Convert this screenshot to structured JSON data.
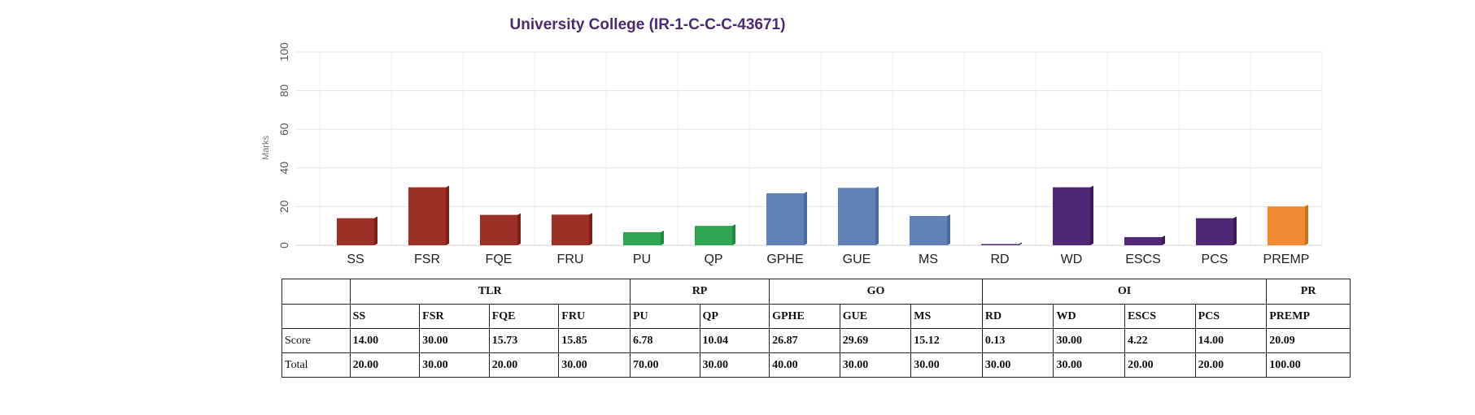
{
  "chart_data": {
    "type": "bar",
    "title": "University College (IR-1-C-C-C-43671)",
    "ylabel": "Marks",
    "xlabel": "",
    "ylim": [
      0,
      100
    ],
    "yticks": [
      0,
      20,
      40,
      60,
      80,
      100
    ],
    "grid": true,
    "categories": [
      "SS",
      "FSR",
      "FQE",
      "FRU",
      "PU",
      "QP",
      "GPHE",
      "GUE",
      "MS",
      "RD",
      "WD",
      "ESCS",
      "PCS",
      "PREMP"
    ],
    "values": [
      14.0,
      30.0,
      15.73,
      15.85,
      6.78,
      10.04,
      26.87,
      29.69,
      15.12,
      0.13,
      30.0,
      4.22,
      14.0,
      20.09
    ],
    "bar_colors": [
      "#9b3126",
      "#9b3126",
      "#9b3126",
      "#9b3126",
      "#2fa552",
      "#2fa552",
      "#6181b7",
      "#6181b7",
      "#6181b7",
      "#4f2774",
      "#4f2774",
      "#4f2774",
      "#4f2774",
      "#f08a32"
    ],
    "bar_side_colors": [
      "#7a2018",
      "#7a2018",
      "#7a2018",
      "#7a2018",
      "#1f8a3f",
      "#1f8a3f",
      "#4d6a9c",
      "#4d6a9c",
      "#4d6a9c",
      "#3b1a5c",
      "#3b1a5c",
      "#3b1a5c",
      "#3b1a5c",
      "#d06d1c"
    ]
  },
  "table": {
    "groups": [
      {
        "name": "TLR",
        "span": 4
      },
      {
        "name": "RP",
        "span": 2
      },
      {
        "name": "GO",
        "span": 3
      },
      {
        "name": "OI",
        "span": 4
      },
      {
        "name": "PR",
        "span": 1
      }
    ],
    "codes": [
      "SS",
      "FSR",
      "FQE",
      "FRU",
      "PU",
      "QP",
      "GPHE",
      "GUE",
      "MS",
      "RD",
      "WD",
      "ESCS",
      "PCS",
      "PREMP"
    ],
    "score_label": "Score",
    "scores": [
      "14.00",
      "30.00",
      "15.73",
      "15.85",
      "6.78",
      "10.04",
      "26.87",
      "29.69",
      "15.12",
      "0.13",
      "30.00",
      "4.22",
      "14.00",
      "20.09"
    ],
    "total_label": "Total",
    "totals": [
      "20.00",
      "30.00",
      "20.00",
      "30.00",
      "70.00",
      "30.00",
      "40.00",
      "30.00",
      "30.00",
      "30.00",
      "30.00",
      "20.00",
      "20.00",
      "100.00"
    ]
  }
}
